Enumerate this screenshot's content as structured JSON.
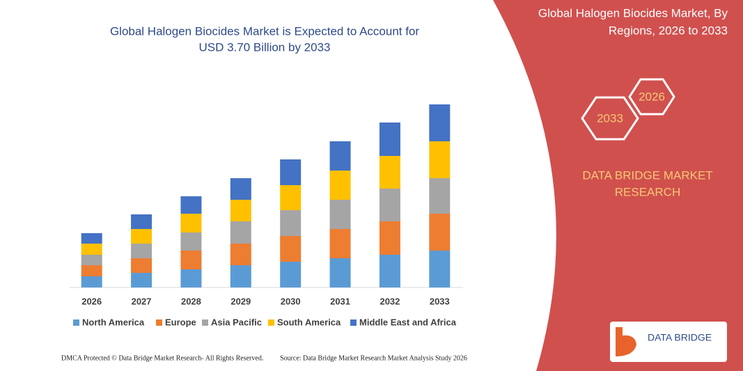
{
  "chart_data": {
    "type": "stacked_bar",
    "title": [
      "Global Halogen Biocides Market is Expected to Account for",
      "USD 3.70 Billion by 2033"
    ],
    "categories": [
      "2026",
      "2027",
      "2028",
      "2029",
      "2030",
      "2031",
      "2032",
      "2033"
    ],
    "series": [
      {
        "name": "North America",
        "color": "#5b9bd5",
        "values": [
          16,
          21,
          26,
          32,
          37,
          42,
          47,
          53
        ]
      },
      {
        "name": "Europe",
        "color": "#ed7d31",
        "values": [
          16,
          21,
          27,
          31,
          37,
          42,
          48,
          53
        ]
      },
      {
        "name": "Asia Pacific",
        "color": "#a5a5a5",
        "values": [
          15,
          21,
          26,
          32,
          37,
          42,
          47,
          51
        ]
      },
      {
        "name": "South America",
        "color": "#ffc000",
        "values": [
          16,
          21,
          27,
          31,
          36,
          42,
          47,
          53
        ]
      },
      {
        "name": "Middle East and Africa",
        "color": "#4472c4",
        "values": [
          15,
          21,
          25,
          31,
          37,
          42,
          48,
          53
        ]
      }
    ],
    "legend": "bottom"
  },
  "side_panel": {
    "title": [
      "Global Halogen Biocides Market, By",
      "Regions, 2026 to 2033"
    ],
    "hexagons": [
      "2033",
      "2026"
    ],
    "brand": [
      "DATA BRIDGE MARKET",
      "RESEARCH"
    ]
  },
  "footer": {
    "copyright": "DMCA Protected © Data Bridge Market Research- All Rights Reserved.",
    "source": "Source: Data Bridge Market Research  Market Analysis Study 2026"
  },
  "logo": "DATA BRIDGE"
}
